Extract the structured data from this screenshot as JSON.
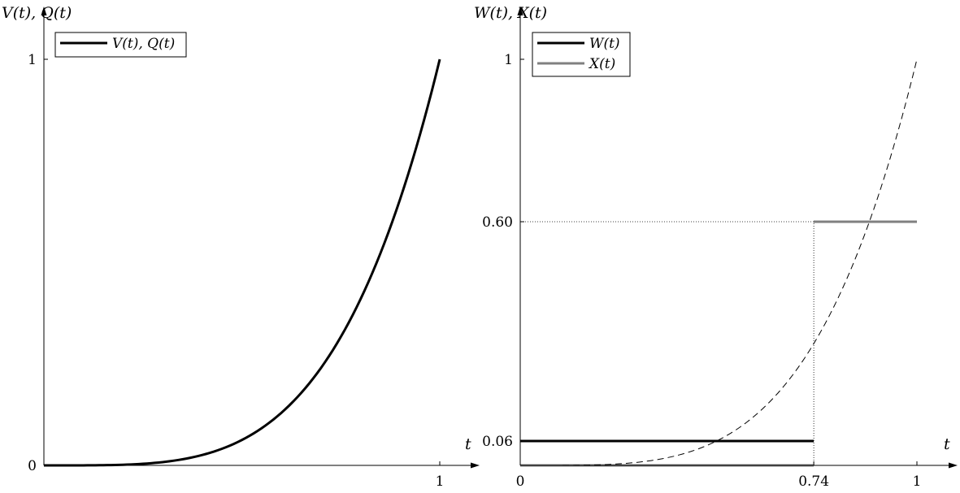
{
  "chart_data": [
    {
      "type": "line",
      "title": "",
      "xlabel": "t",
      "ylabel": "V(t), Q(t)",
      "xlim": [
        0,
        1.1
      ],
      "ylim": [
        0,
        1.12
      ],
      "x_ticks": [
        {
          "value": 1,
          "label": "1"
        }
      ],
      "y_ticks": [
        {
          "value": 0,
          "label": "0"
        },
        {
          "value": 1,
          "label": "1"
        }
      ],
      "grid": false,
      "legend": "top-left",
      "series": [
        {
          "name": "V(t), Q(t)",
          "color": "#000000",
          "style": "solid",
          "x": [
            0,
            0.1,
            0.2,
            0.3,
            0.4,
            0.5,
            0.6,
            0.7,
            0.8,
            0.9,
            1.0
          ],
          "y": [
            0,
            0.0001,
            0.0016,
            0.0081,
            0.0256,
            0.0625,
            0.1296,
            0.2401,
            0.4096,
            0.6561,
            1.0
          ]
        }
      ]
    },
    {
      "type": "line",
      "title": "",
      "xlabel": "t",
      "ylabel": "W(t), X(t)",
      "xlim": [
        0,
        1.1
      ],
      "ylim": [
        0,
        1.12
      ],
      "x_ticks": [
        {
          "value": 0,
          "label": "0"
        },
        {
          "value": 0.74,
          "label": "0.74"
        },
        {
          "value": 1,
          "label": "1"
        }
      ],
      "y_ticks": [
        {
          "value": 0.06,
          "label": "0.06"
        },
        {
          "value": 0.6,
          "label": "0.60"
        },
        {
          "value": 1,
          "label": "1"
        }
      ],
      "grid": false,
      "legend": "top-left",
      "series": [
        {
          "name": "W(t)",
          "color": "#000000",
          "style": "solid",
          "segments": [
            {
              "x": [
                0,
                0.74
              ],
              "y": [
                0.06,
                0.06
              ]
            },
            {
              "x": [
                0.74,
                1.0
              ],
              "y": [
                0.6,
                0.6
              ]
            }
          ]
        },
        {
          "name": "X(t)",
          "color": "#808080",
          "style": "solid",
          "segments": [
            {
              "x": [
                0,
                0.74
              ],
              "y": [
                0,
                0
              ]
            },
            {
              "x": [
                0.74,
                1.0
              ],
              "y": [
                0.6,
                0.6
              ]
            }
          ]
        },
        {
          "name": "",
          "color": "#000000",
          "style": "dashed",
          "x": [
            0,
            0.1,
            0.2,
            0.3,
            0.4,
            0.5,
            0.6,
            0.7,
            0.74,
            0.8,
            0.9,
            1.0
          ],
          "y": [
            0,
            0.0001,
            0.0016,
            0.0081,
            0.0256,
            0.0625,
            0.1296,
            0.2401,
            0.2999,
            0.4096,
            0.6561,
            1.0
          ]
        }
      ],
      "reference_lines": [
        {
          "orientation": "horizontal",
          "value": 0.6,
          "style": "dotted"
        },
        {
          "orientation": "vertical",
          "value": 0.74,
          "style": "dotted"
        }
      ]
    }
  ]
}
